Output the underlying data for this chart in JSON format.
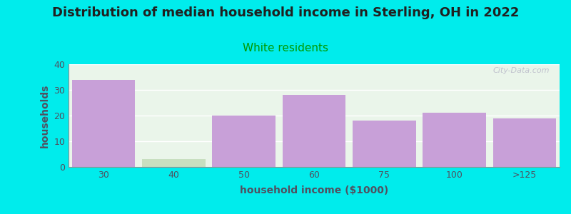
{
  "title": "Distribution of median household income in Sterling, OH in 2022",
  "subtitle": "White residents",
  "xlabel": "household income ($1000)",
  "ylabel": "households",
  "categories": [
    "30",
    "40",
    "50",
    "60",
    "75",
    "100",
    ">125"
  ],
  "values": [
    34,
    3,
    20,
    28,
    18,
    21,
    19
  ],
  "bar_colors": [
    "#c8a0d8",
    "#c8dfc0",
    "#c8a0d8",
    "#c8a0d8",
    "#c8a0d8",
    "#c8a0d8",
    "#c8a0d8"
  ],
  "ylim": [
    0,
    40
  ],
  "yticks": [
    0,
    10,
    20,
    30,
    40
  ],
  "background_color": "#00ecec",
  "plot_bg_top": "#eaf5ea",
  "plot_bg_bottom": "#f8f8ff",
  "title_fontsize": 13,
  "subtitle_fontsize": 11,
  "subtitle_color": "#009900",
  "axis_label_fontsize": 10,
  "tick_fontsize": 9,
  "tick_color": "#505060",
  "ylabel_color": "#505060",
  "xlabel_color": "#505060",
  "title_color": "#202020",
  "watermark_text": "City-Data.com",
  "watermark_color": "#b8b8c8"
}
